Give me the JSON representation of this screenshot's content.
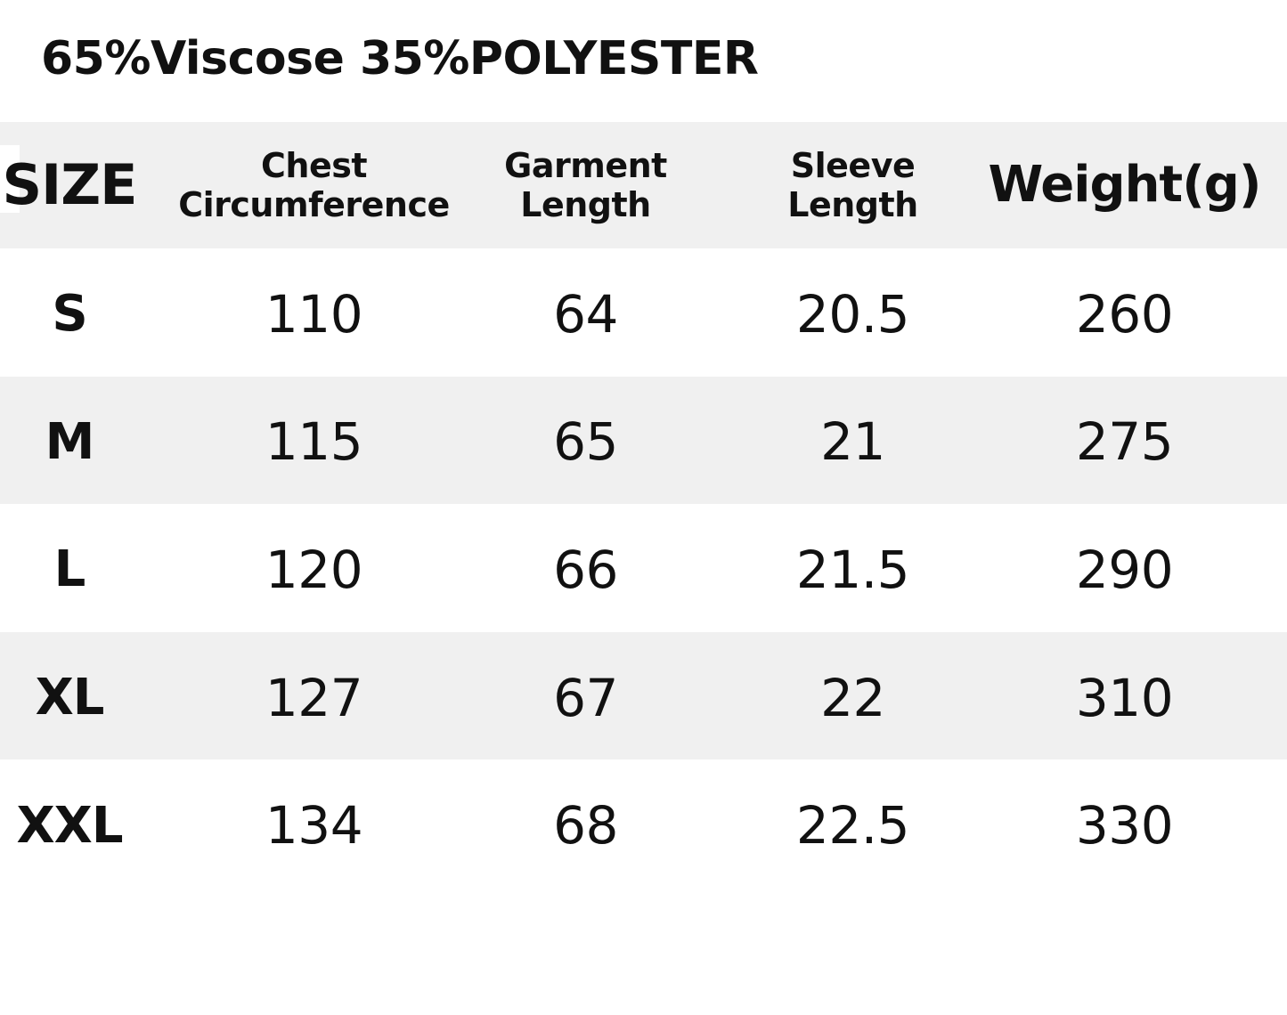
{
  "title": "65%Viscose 35%POLYESTER",
  "table": {
    "headers": {
      "size": "SIZE",
      "chest_line1": "Chest",
      "chest_line2": "Circumference",
      "garment_line1": "Garment",
      "garment_line2": "Length",
      "sleeve_line1": "Sleeve",
      "sleeve_line2": "Length",
      "weight": "Weight(g)"
    },
    "rows": [
      {
        "size": "S",
        "chest": "110",
        "garment": "64",
        "sleeve": "20.5",
        "weight": "260"
      },
      {
        "size": "M",
        "chest": "115",
        "garment": "65",
        "sleeve": "21",
        "weight": "275"
      },
      {
        "size": "L",
        "chest": "120",
        "garment": "66",
        "sleeve": "21.5",
        "weight": "290"
      },
      {
        "size": "XL",
        "chest": "127",
        "garment": "67",
        "sleeve": "22",
        "weight": "310"
      },
      {
        "size": "XXL",
        "chest": "134",
        "garment": "68",
        "sleeve": "22.5",
        "weight": "330"
      }
    ]
  },
  "colors": {
    "band": "#f0f0f0",
    "text": "#111111"
  }
}
